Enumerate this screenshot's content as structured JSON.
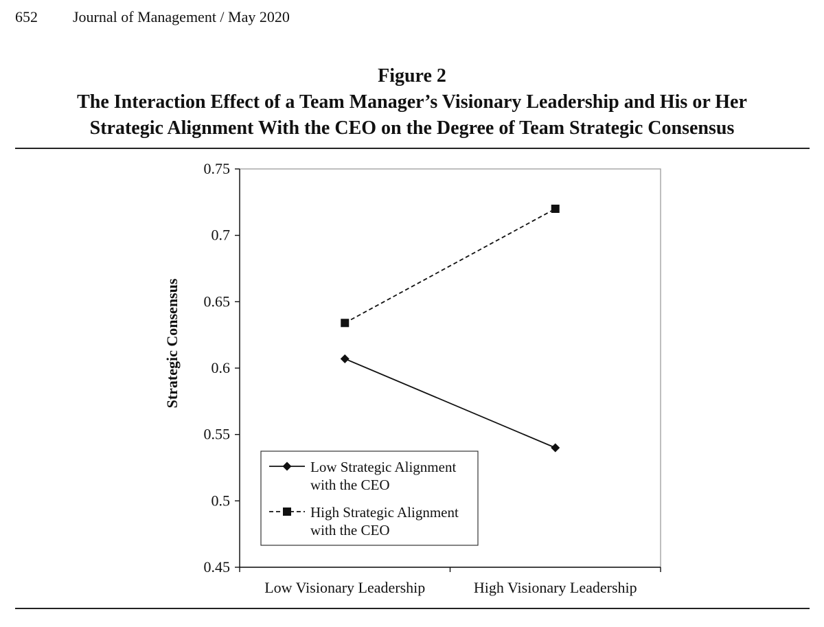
{
  "header": {
    "page_number": "652",
    "journal": "Journal of Management / May 2020"
  },
  "figure": {
    "label": "Figure 2",
    "title_line1": "The Interaction Effect of a Team Manager’s Visionary Leadership and His or Her",
    "title_line2": "Strategic Alignment With the CEO on the Degree of Team Strategic Consensus"
  },
  "chart_data": {
    "type": "line",
    "categories": [
      "Low Visionary Leadership",
      "High Visionary Leadership"
    ],
    "series": [
      {
        "name": "Low Strategic Alignment with the CEO",
        "legend_lines": [
          "Low Strategic Alignment",
          "with the CEO"
        ],
        "values": [
          0.607,
          0.54
        ],
        "line_style": "solid",
        "marker": "diamond",
        "color": "#111111"
      },
      {
        "name": "High Strategic Alignment with the CEO",
        "legend_lines": [
          "High Strategic Alignment",
          "with the CEO"
        ],
        "values": [
          0.634,
          0.72
        ],
        "line_style": "dashed",
        "marker": "square",
        "color": "#111111"
      }
    ],
    "title": "",
    "xlabel": "",
    "ylabel": "Strategic Consensus",
    "ylim": [
      0.45,
      0.75
    ],
    "yticks": [
      0.45,
      0.5,
      0.55,
      0.6,
      0.65,
      0.7,
      0.75
    ],
    "ytick_labels": [
      "0.45",
      "0.5",
      "0.55",
      "0.6",
      "0.65",
      "0.7",
      "0.75"
    ],
    "grid": false,
    "legend_position": "bottom-left inside plot"
  }
}
